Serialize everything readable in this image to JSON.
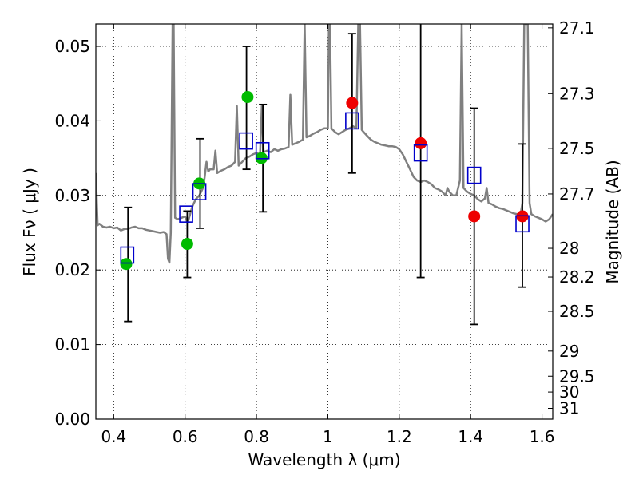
{
  "chart_data": {
    "type": "scatter",
    "xlabel": "Wavelength  λ (μm)",
    "ylabel_left": "Flux  Fν ( μJy )",
    "ylabel_right": "Magnitude (AB)",
    "xlim": [
      0.35,
      1.63
    ],
    "ylim": [
      0.0,
      0.053
    ],
    "grid": true,
    "x_ticks": [
      0.4,
      0.6,
      0.8,
      1.0,
      1.2,
      1.4,
      1.6
    ],
    "x_tick_labels": [
      "0.4",
      "0.6",
      "0.8",
      "1",
      "1.2",
      "1.4",
      "1.6"
    ],
    "y_ticks": [
      0.0,
      0.01,
      0.02,
      0.03,
      0.04,
      0.05
    ],
    "y_tick_labels": [
      "0.00",
      "0.01",
      "0.02",
      "0.03",
      "0.04",
      "0.05"
    ],
    "mag_ticks": [
      "27.1",
      "27.3",
      "27.5",
      "27.7",
      "28",
      "28.2",
      "28.5",
      "29",
      "29.5",
      "30",
      "31"
    ],
    "series": [
      {
        "marker": "circle",
        "color": "#00bb00",
        "points": [
          {
            "x": 0.435,
            "y": 0.0208
          },
          {
            "x": 0.606,
            "y": 0.0235
          },
          {
            "x": 0.64,
            "y": 0.0316
          },
          {
            "x": 0.775,
            "y": 0.0432
          },
          {
            "x": 0.814,
            "y": 0.035
          }
        ]
      },
      {
        "marker": "circle",
        "color": "#ee0000",
        "points": [
          {
            "x": 1.068,
            "y": 0.0424
          },
          {
            "x": 1.26,
            "y": 0.037
          },
          {
            "x": 1.41,
            "y": 0.0272
          },
          {
            "x": 1.545,
            "y": 0.0272
          }
        ]
      },
      {
        "marker": "open-square",
        "color": "#0000cc",
        "points": [
          {
            "x": 0.438,
            "y": 0.022
          },
          {
            "x": 0.603,
            "y": 0.0275
          },
          {
            "x": 0.64,
            "y": 0.0305
          },
          {
            "x": 0.771,
            "y": 0.0373
          },
          {
            "x": 0.817,
            "y": 0.036
          },
          {
            "x": 1.068,
            "y": 0.04
          },
          {
            "x": 1.26,
            "y": 0.0357
          },
          {
            "x": 1.41,
            "y": 0.0327
          },
          {
            "x": 1.545,
            "y": 0.0262
          }
        ]
      }
    ],
    "error_bars": [
      {
        "x": 0.44,
        "ylow": 0.0131,
        "yhigh": 0.0284
      },
      {
        "x": 0.606,
        "ylow": 0.019,
        "yhigh": 0.0279
      },
      {
        "x": 0.642,
        "ylow": 0.0256,
        "yhigh": 0.0376
      },
      {
        "x": 0.772,
        "ylow": 0.0335,
        "yhigh": 0.05
      },
      {
        "x": 0.818,
        "ylow": 0.0278,
        "yhigh": 0.0422
      },
      {
        "x": 1.068,
        "ylow": 0.033,
        "yhigh": 0.0517
      },
      {
        "x": 1.26,
        "ylow": 0.019,
        "yhigh": 0.053
      },
      {
        "x": 1.41,
        "ylow": 0.0127,
        "yhigh": 0.0417
      },
      {
        "x": 1.545,
        "ylow": 0.0177,
        "yhigh": 0.0369
      }
    ],
    "spectrum": {
      "color": "#808080",
      "points": [
        [
          0.35,
          0.033
        ],
        [
          0.355,
          0.026
        ],
        [
          0.36,
          0.0262
        ],
        [
          0.37,
          0.0258
        ],
        [
          0.38,
          0.0257
        ],
        [
          0.39,
          0.0258
        ],
        [
          0.4,
          0.0256
        ],
        [
          0.41,
          0.0257
        ],
        [
          0.42,
          0.0253
        ],
        [
          0.43,
          0.0255
        ],
        [
          0.44,
          0.0255
        ],
        [
          0.45,
          0.0257
        ],
        [
          0.46,
          0.0258
        ],
        [
          0.47,
          0.0256
        ],
        [
          0.48,
          0.0256
        ],
        [
          0.49,
          0.0254
        ],
        [
          0.5,
          0.0253
        ],
        [
          0.51,
          0.0252
        ],
        [
          0.52,
          0.0251
        ],
        [
          0.53,
          0.025
        ],
        [
          0.54,
          0.0251
        ],
        [
          0.548,
          0.0248
        ],
        [
          0.552,
          0.0215
        ],
        [
          0.556,
          0.021
        ],
        [
          0.56,
          0.025
        ],
        [
          0.565,
          0.053
        ],
        [
          0.568,
          0.053
        ],
        [
          0.572,
          0.027
        ],
        [
          0.58,
          0.0268
        ],
        [
          0.59,
          0.027
        ],
        [
          0.6,
          0.0272
        ],
        [
          0.605,
          0.0265
        ],
        [
          0.61,
          0.0268
        ],
        [
          0.62,
          0.0285
        ],
        [
          0.63,
          0.0295
        ],
        [
          0.64,
          0.03
        ],
        [
          0.65,
          0.031
        ],
        [
          0.655,
          0.0325
        ],
        [
          0.66,
          0.0345
        ],
        [
          0.665,
          0.0332
        ],
        [
          0.67,
          0.0335
        ],
        [
          0.68,
          0.0335
        ],
        [
          0.685,
          0.036
        ],
        [
          0.69,
          0.033
        ],
        [
          0.7,
          0.0333
        ],
        [
          0.71,
          0.0335
        ],
        [
          0.72,
          0.0338
        ],
        [
          0.73,
          0.034
        ],
        [
          0.74,
          0.0345
        ],
        [
          0.745,
          0.042
        ],
        [
          0.75,
          0.034
        ],
        [
          0.76,
          0.0345
        ],
        [
          0.77,
          0.035
        ],
        [
          0.78,
          0.0352
        ],
        [
          0.79,
          0.0355
        ],
        [
          0.8,
          0.0357
        ],
        [
          0.81,
          0.0355
        ],
        [
          0.815,
          0.042
        ],
        [
          0.82,
          0.0358
        ],
        [
          0.83,
          0.036
        ],
        [
          0.84,
          0.0358
        ],
        [
          0.85,
          0.0362
        ],
        [
          0.86,
          0.036
        ],
        [
          0.87,
          0.0362
        ],
        [
          0.88,
          0.0363
        ],
        [
          0.89,
          0.0365
        ],
        [
          0.895,
          0.0435
        ],
        [
          0.9,
          0.0368
        ],
        [
          0.91,
          0.037
        ],
        [
          0.92,
          0.0372
        ],
        [
          0.93,
          0.0375
        ],
        [
          0.935,
          0.053
        ],
        [
          0.94,
          0.0378
        ],
        [
          0.95,
          0.038
        ],
        [
          0.96,
          0.0383
        ],
        [
          0.97,
          0.0385
        ],
        [
          0.98,
          0.0388
        ],
        [
          0.99,
          0.039
        ],
        [
          1.0,
          0.039
        ],
        [
          1.003,
          0.053
        ],
        [
          1.006,
          0.053
        ],
        [
          1.01,
          0.039
        ],
        [
          1.02,
          0.0385
        ],
        [
          1.03,
          0.0382
        ],
        [
          1.04,
          0.0385
        ],
        [
          1.05,
          0.0388
        ],
        [
          1.06,
          0.039
        ],
        [
          1.07,
          0.0393
        ],
        [
          1.08,
          0.039
        ],
        [
          1.085,
          0.053
        ],
        [
          1.09,
          0.053
        ],
        [
          1.095,
          0.0388
        ],
        [
          1.1,
          0.0385
        ],
        [
          1.11,
          0.038
        ],
        [
          1.12,
          0.0375
        ],
        [
          1.13,
          0.0372
        ],
        [
          1.14,
          0.037
        ],
        [
          1.15,
          0.0368
        ],
        [
          1.16,
          0.0367
        ],
        [
          1.17,
          0.0366
        ],
        [
          1.18,
          0.0366
        ],
        [
          1.19,
          0.0365
        ],
        [
          1.2,
          0.0362
        ],
        [
          1.21,
          0.0355
        ],
        [
          1.22,
          0.0345
        ],
        [
          1.23,
          0.0335
        ],
        [
          1.24,
          0.0325
        ],
        [
          1.25,
          0.032
        ],
        [
          1.26,
          0.0318
        ],
        [
          1.27,
          0.032
        ],
        [
          1.28,
          0.0318
        ],
        [
          1.29,
          0.0315
        ],
        [
          1.3,
          0.031
        ],
        [
          1.31,
          0.0308
        ],
        [
          1.32,
          0.0305
        ],
        [
          1.33,
          0.03
        ],
        [
          1.335,
          0.031
        ],
        [
          1.34,
          0.0305
        ],
        [
          1.35,
          0.03
        ],
        [
          1.36,
          0.03
        ],
        [
          1.37,
          0.032
        ],
        [
          1.375,
          0.053
        ],
        [
          1.38,
          0.031
        ],
        [
          1.39,
          0.0305
        ],
        [
          1.4,
          0.0302
        ],
        [
          1.41,
          0.03
        ],
        [
          1.42,
          0.0295
        ],
        [
          1.43,
          0.0292
        ],
        [
          1.44,
          0.0296
        ],
        [
          1.445,
          0.031
        ],
        [
          1.45,
          0.029
        ],
        [
          1.46,
          0.0288
        ],
        [
          1.47,
          0.0285
        ],
        [
          1.48,
          0.0283
        ],
        [
          1.49,
          0.0282
        ],
        [
          1.5,
          0.028
        ],
        [
          1.51,
          0.0278
        ],
        [
          1.52,
          0.0276
        ],
        [
          1.53,
          0.0275
        ],
        [
          1.54,
          0.0275
        ],
        [
          1.545,
          0.029
        ],
        [
          1.55,
          0.053
        ],
        [
          1.56,
          0.053
        ],
        [
          1.565,
          0.029
        ],
        [
          1.57,
          0.0275
        ],
        [
          1.58,
          0.0272
        ],
        [
          1.59,
          0.027
        ],
        [
          1.6,
          0.0268
        ],
        [
          1.61,
          0.0265
        ],
        [
          1.62,
          0.0268
        ],
        [
          1.63,
          0.0275
        ]
      ]
    }
  }
}
